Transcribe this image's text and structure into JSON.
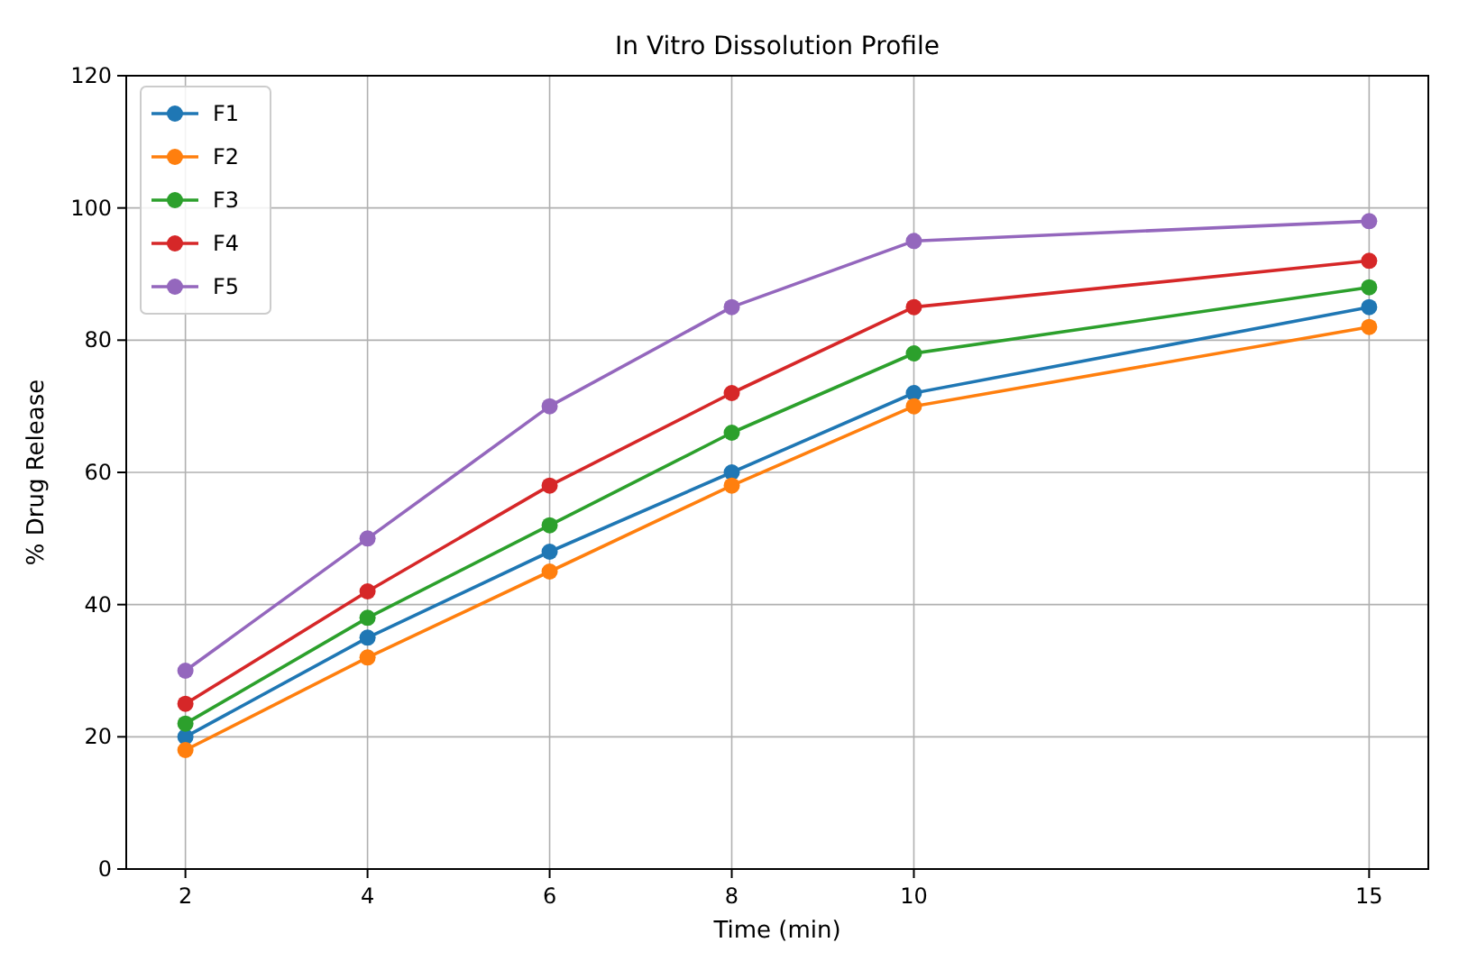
{
  "chart_data": {
    "type": "line",
    "title": "In Vitro Dissolution Profile",
    "xlabel": "Time (min)",
    "ylabel": "% Drug Release",
    "x": [
      2,
      4,
      6,
      8,
      10,
      15
    ],
    "series": [
      {
        "name": "F1",
        "color": "#1f77b4",
        "values": [
          20,
          35,
          48,
          60,
          72,
          85
        ]
      },
      {
        "name": "F2",
        "color": "#ff7f0e",
        "values": [
          18,
          32,
          45,
          58,
          70,
          82
        ]
      },
      {
        "name": "F3",
        "color": "#2ca02c",
        "values": [
          22,
          38,
          52,
          66,
          78,
          88
        ]
      },
      {
        "name": "F4",
        "color": "#d62728",
        "values": [
          25,
          42,
          58,
          72,
          85,
          92
        ]
      },
      {
        "name": "F5",
        "color": "#9467bd",
        "values": [
          30,
          50,
          70,
          85,
          95,
          98
        ]
      }
    ],
    "xlim": [
      1.35,
      15.65
    ],
    "xticks": [
      2,
      4,
      6,
      8,
      10,
      15
    ],
    "ylim": [
      0,
      120
    ],
    "yticks": [
      0,
      20,
      40,
      60,
      80,
      100,
      120
    ],
    "grid": true,
    "legend": "top left",
    "marker": "circle",
    "line_style": "solid"
  }
}
